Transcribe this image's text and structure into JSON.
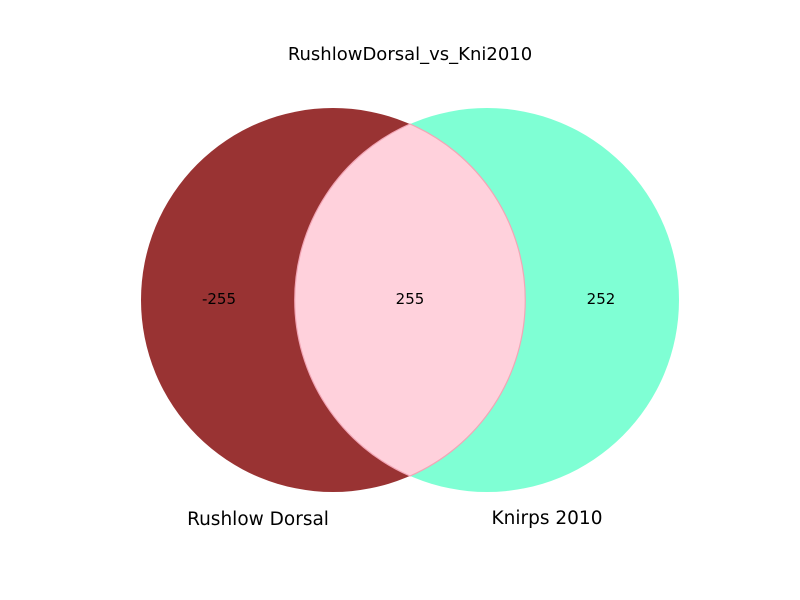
{
  "title": "RushlowDorsal_vs_Kni2010",
  "sets": [
    {
      "name": "Rushlow Dorsal",
      "color": "#993333"
    },
    {
      "name": "Knirps 2010",
      "color": "#7fffd4"
    }
  ],
  "intersection_color": "#ffd1dc",
  "regions": {
    "left_only": "-255",
    "both": "255",
    "right_only": "252"
  }
}
